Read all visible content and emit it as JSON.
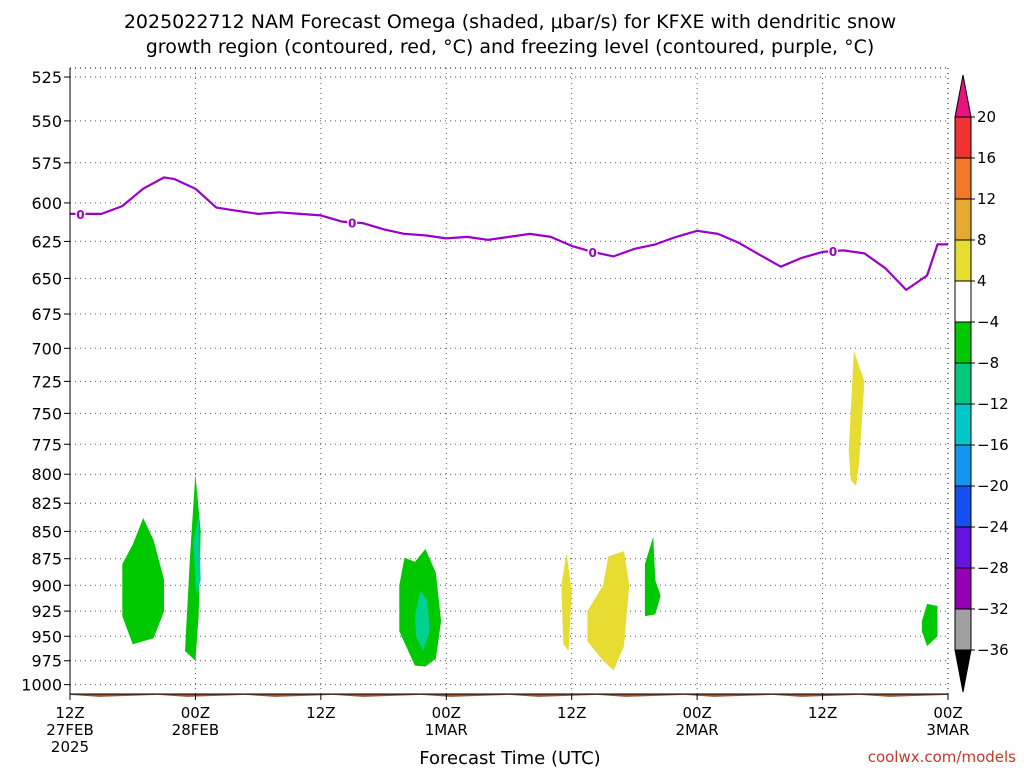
{
  "title": {
    "line1": "2025022712 NAM Forecast Omega (shaded, μbar/s) for KFXE with dendritic snow",
    "line2": "growth region (contoured, red, °C) and freezing level (contoured, purple, °C)"
  },
  "credit": "coolwx.com/models",
  "chart_data": {
    "type": "heatmap",
    "title": "2025022712 NAM Forecast Omega (shaded, μbar/s) for KFXE with dendritic snow growth region (contoured, red, °C) and freezing level (contoured, purple, °C)",
    "xlabel": "Forecast Time (UTC)",
    "ylabel": "",
    "x_range_hours": [
      0,
      84
    ],
    "y_axis": {
      "scale": "log",
      "reversed": true,
      "range": [
        1010,
        520
      ]
    },
    "y_ticks": [
      "525",
      "550",
      "575",
      "600",
      "625",
      "650",
      "675",
      "700",
      "725",
      "750",
      "775",
      "800",
      "825",
      "850",
      "875",
      "900",
      "925",
      "950",
      "975",
      "1000"
    ],
    "x_ticks": [
      {
        "hour": 0,
        "label": "12Z",
        "sub": "27FEB",
        "sub2": "2025"
      },
      {
        "hour": 12,
        "label": "00Z",
        "sub": "28FEB",
        "sub2": ""
      },
      {
        "hour": 24,
        "label": "12Z",
        "sub": "",
        "sub2": ""
      },
      {
        "hour": 36,
        "label": "00Z",
        "sub": "1MAR",
        "sub2": ""
      },
      {
        "hour": 48,
        "label": "12Z",
        "sub": "",
        "sub2": ""
      },
      {
        "hour": 60,
        "label": "00Z",
        "sub": "2MAR",
        "sub2": ""
      },
      {
        "hour": 72,
        "label": "12Z",
        "sub": "",
        "sub2": ""
      },
      {
        "hour": 84,
        "label": "00Z",
        "sub": "3MAR",
        "sub2": ""
      }
    ],
    "grid": true,
    "freezing_level": {
      "label": "0",
      "color": "#9a00c8",
      "label_hours": [
        1,
        27,
        50,
        73
      ],
      "points": [
        [
          0,
          607
        ],
        [
          3,
          607
        ],
        [
          5,
          602
        ],
        [
          7,
          591
        ],
        [
          9,
          584
        ],
        [
          10,
          585
        ],
        [
          12,
          591
        ],
        [
          14,
          603
        ],
        [
          16,
          605
        ],
        [
          18,
          607
        ],
        [
          20,
          606
        ],
        [
          22,
          607
        ],
        [
          24,
          608
        ],
        [
          26,
          612
        ],
        [
          28,
          613
        ],
        [
          30,
          617
        ],
        [
          32,
          620
        ],
        [
          34,
          621
        ],
        [
          36,
          623
        ],
        [
          38,
          622
        ],
        [
          40,
          624
        ],
        [
          42,
          622
        ],
        [
          44,
          620
        ],
        [
          46,
          622
        ],
        [
          48,
          628
        ],
        [
          50,
          632
        ],
        [
          52,
          635
        ],
        [
          54,
          630
        ],
        [
          56,
          627
        ],
        [
          58,
          622
        ],
        [
          60,
          618
        ],
        [
          62,
          620
        ],
        [
          64,
          626
        ],
        [
          66,
          634
        ],
        [
          68,
          642
        ],
        [
          70,
          636
        ],
        [
          72,
          632
        ],
        [
          74,
          631
        ],
        [
          76,
          633
        ],
        [
          78,
          643
        ],
        [
          80,
          658
        ],
        [
          82,
          648
        ],
        [
          83,
          627
        ],
        [
          84,
          627
        ]
      ]
    },
    "omega_regions": [
      {
        "level": "-4 to -8",
        "color": "#00c800",
        "points": [
          [
            5,
            880
          ],
          [
            6,
            862
          ],
          [
            7,
            838
          ],
          [
            8,
            858
          ],
          [
            9,
            895
          ],
          [
            9,
            925
          ],
          [
            8,
            952
          ],
          [
            6,
            958
          ],
          [
            5,
            930
          ]
        ]
      },
      {
        "level": "-4 to -8",
        "color": "#00c800",
        "points": [
          [
            11,
            965
          ],
          [
            11.5,
            870
          ],
          [
            12,
            800
          ],
          [
            12.5,
            850
          ],
          [
            12.3,
            930
          ],
          [
            12,
            975
          ],
          [
            11,
            965
          ]
        ]
      },
      {
        "level": "-8 to -12",
        "color": "#00d090",
        "points": [
          [
            11.8,
            860
          ],
          [
            12.3,
            835
          ],
          [
            12.5,
            895
          ],
          [
            12.1,
            910
          ]
        ]
      },
      {
        "level": "-4 to -8",
        "color": "#00c800",
        "points": [
          [
            31.5,
            900
          ],
          [
            32,
            874
          ],
          [
            33,
            878
          ],
          [
            34,
            866
          ],
          [
            35,
            888
          ],
          [
            35.5,
            935
          ],
          [
            35,
            973
          ],
          [
            34,
            981
          ],
          [
            33,
            980
          ],
          [
            31.5,
            945
          ]
        ]
      },
      {
        "level": "-8 to -12",
        "color": "#00d090",
        "points": [
          [
            33,
            930
          ],
          [
            33.5,
            905
          ],
          [
            34.2,
            915
          ],
          [
            34.4,
            945
          ],
          [
            33.8,
            965
          ],
          [
            33.1,
            950
          ]
        ]
      },
      {
        "level": "-4 to -8",
        "color": "#00c800",
        "points": [
          [
            55,
            880
          ],
          [
            55.8,
            855
          ],
          [
            56,
            895
          ],
          [
            56.5,
            910
          ],
          [
            56,
            928
          ],
          [
            55,
            930
          ]
        ]
      },
      {
        "level": "-4 to -8",
        "color": "#00c800",
        "points": [
          [
            81.5,
            935
          ],
          [
            82,
            918
          ],
          [
            83,
            920
          ],
          [
            83,
            950
          ],
          [
            82,
            960
          ],
          [
            81.5,
            945
          ]
        ]
      },
      {
        "level": "4 to 8",
        "color": "#e6dc32",
        "points": [
          [
            47,
            900
          ],
          [
            47.5,
            870
          ],
          [
            48,
            905
          ],
          [
            47.7,
            965
          ],
          [
            47.2,
            958
          ]
        ]
      },
      {
        "level": "4 to 8",
        "color": "#e6dc32",
        "points": [
          [
            49.5,
            925
          ],
          [
            51,
            900
          ],
          [
            51.5,
            873
          ],
          [
            53,
            868
          ],
          [
            53.5,
            900
          ],
          [
            53,
            960
          ],
          [
            52,
            985
          ],
          [
            51,
            975
          ],
          [
            49.5,
            955
          ]
        ]
      },
      {
        "level": "4 to 8",
        "color": "#e6dc32",
        "points": [
          [
            74.5,
            780
          ],
          [
            75,
            702
          ],
          [
            76,
            725
          ],
          [
            75.5,
            790
          ],
          [
            75.2,
            810
          ],
          [
            74.7,
            805
          ]
        ]
      }
    ],
    "terrain": {
      "color": "#a0522d",
      "pressure": 1012
    },
    "colorbar": {
      "labels": [
        "20",
        "16",
        "12",
        "8",
        "4",
        "−4",
        "−8",
        "−12",
        "−16",
        "−20",
        "−24",
        "−28",
        "−32",
        "−36"
      ],
      "colors_top_to_bottom": [
        "#e8147d",
        "#f03232",
        "#f07828",
        "#e6aa32",
        "#e6dc32",
        "#ffffff",
        "#00c800",
        "#00c87d",
        "#00c8c8",
        "#1496f0",
        "#1450f0",
        "#6414dc",
        "#9600b4",
        "#a0a0a0",
        "#000000"
      ]
    }
  }
}
